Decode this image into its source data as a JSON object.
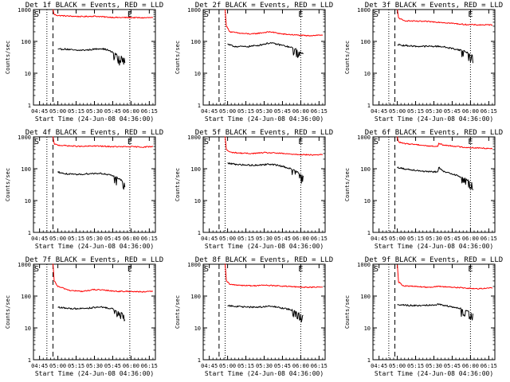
{
  "figure": {
    "x_tick_labels": [
      "04:45",
      "05:00",
      "05:15",
      "05:30",
      "05:45",
      "06:00",
      "06:15"
    ],
    "x_ticks_min": [
      285,
      300,
      315,
      330,
      345,
      360,
      375
    ],
    "xlim_min": [
      280,
      380
    ],
    "ylim": [
      1,
      1000
    ],
    "y_log": true,
    "y_tick_labels": [
      "1",
      "10",
      "100",
      "1000"
    ],
    "y_ticks": [
      1,
      10,
      100,
      1000
    ],
    "colors": {
      "events": "#000000",
      "lld": "#ff0000"
    },
    "start_marker": "S",
    "end_marker": "E"
  },
  "panels": [
    {
      "title": "Det 1f BLACK = Events, RED = LLD",
      "ylabel": "Counts/sec",
      "xlabel": "Start Time (24-Jun-08 04:36:00)",
      "dotted_lines_min": [
        291,
        359
      ],
      "dashed_line_min": [
        296
      ],
      "chart_data": {
        "type": "line",
        "y_scale": "log",
        "series": [
          {
            "color": "#ff0000",
            "x": [
              296,
              297,
              300,
              310,
              320,
              330,
              340,
              350,
              360,
              370,
              378
            ],
            "y": [
              1000,
              700,
              650,
              620,
              600,
              620,
              580,
              560,
              560,
              550,
              560
            ]
          },
          {
            "color": "#000000",
            "x": [
              300,
              305,
              315,
              325,
              335,
              340,
              345,
              350,
              355
            ],
            "y": [
              55,
              58,
              52,
              54,
              60,
              55,
              45,
              35,
              30
            ]
          }
        ]
      }
    },
    {
      "title": "Det 2f BLACK = Events, RED = LLD",
      "ylabel": "Counts/sec",
      "xlabel": "Start Time (24-Jun-08 04:36:00)",
      "dotted_lines_min": [
        298,
        360
      ],
      "dashed_line_min": [
        293
      ],
      "chart_data": {
        "type": "line",
        "y_scale": "log",
        "series": [
          {
            "color": "#ff0000",
            "x": [
              298,
              299,
              302,
              310,
              320,
              330,
              335,
              345,
              355,
              365,
              378
            ],
            "y": [
              1000,
              300,
              200,
              180,
              170,
              190,
              200,
              170,
              160,
              150,
              160
            ]
          },
          {
            "color": "#000000",
            "x": [
              300,
              305,
              315,
              325,
              335,
              345,
              355,
              362
            ],
            "y": [
              80,
              70,
              68,
              75,
              90,
              75,
              60,
              40
            ]
          }
        ]
      }
    },
    {
      "title": "Det 3f BLACK = Events, RED = LLD",
      "ylabel": "Counts/sec",
      "xlabel": "Start Time (24-Jun-08 04:36:00)",
      "dotted_lines_min": [
        293,
        360
      ],
      "dashed_line_min": [
        298
      ],
      "chart_data": {
        "type": "line",
        "y_scale": "log",
        "series": [
          {
            "color": "#ff0000",
            "x": [
              300,
              301,
              305,
              315,
              325,
              335,
              345,
              355,
              365,
              378
            ],
            "y": [
              1000,
              550,
              450,
              430,
              420,
              400,
              370,
              340,
              330,
              330
            ]
          },
          {
            "color": "#000000",
            "x": [
              300,
              305,
              315,
              325,
              335,
              345,
              355,
              362
            ],
            "y": [
              80,
              75,
              70,
              70,
              70,
              60,
              50,
              35
            ]
          }
        ]
      }
    },
    {
      "title": "Det 4f BLACK = Events, RED = LLD",
      "ylabel": "Counts/sec",
      "xlabel": "Start Time (24-Jun-08 04:36:00)",
      "dotted_lines_min": [
        291,
        359
      ],
      "dashed_line_min": [
        296
      ],
      "chart_data": {
        "type": "line",
        "y_scale": "log",
        "series": [
          {
            "color": "#ff0000",
            "x": [
              296,
              297,
              300,
              310,
              320,
              330,
              340,
              350,
              360,
              370,
              378
            ],
            "y": [
              1000,
              600,
              550,
              520,
              500,
              520,
              500,
              490,
              490,
              480,
              500
            ]
          },
          {
            "color": "#000000",
            "x": [
              300,
              305,
              315,
              325,
              335,
              345,
              350,
              355
            ],
            "y": [
              80,
              70,
              65,
              70,
              72,
              60,
              50,
              35
            ]
          }
        ]
      }
    },
    {
      "title": "Det 5f BLACK = Events, RED = LLD",
      "ylabel": "Counts/sec",
      "xlabel": "Start Time (24-Jun-08 04:36:00)",
      "dotted_lines_min": [
        298,
        360
      ],
      "dashed_line_min": [
        293
      ],
      "chart_data": {
        "type": "line",
        "y_scale": "log",
        "series": [
          {
            "color": "#ff0000",
            "x": [
              298,
              299,
              302,
              310,
              320,
              330,
              340,
              350,
              360,
              370,
              378
            ],
            "y": [
              1000,
              400,
              330,
              310,
              300,
              320,
              310,
              290,
              280,
              270,
              280
            ]
          },
          {
            "color": "#000000",
            "x": [
              300,
              305,
              315,
              325,
              335,
              345,
              355,
              362
            ],
            "y": [
              150,
              140,
              130,
              130,
              140,
              120,
              90,
              60
            ]
          }
        ]
      }
    },
    {
      "title": "Det 6f BLACK = Events, RED = LLD",
      "ylabel": "Counts/sec",
      "xlabel": "Start Time (24-Jun-08 04:36:00)",
      "dotted_lines_min": [
        293,
        360
      ],
      "dashed_line_min": [
        298
      ],
      "chart_data": {
        "type": "line",
        "y_scale": "log",
        "series": [
          {
            "color": "#ff0000",
            "x": [
              300,
              301,
              305,
              315,
              325,
              333,
              334,
              338,
              345,
              355,
              365,
              378
            ],
            "y": [
              1000,
              700,
              620,
              580,
              520,
              500,
              620,
              550,
              520,
              470,
              450,
              430
            ]
          },
          {
            "color": "#000000",
            "x": [
              300,
              305,
              315,
              325,
              333,
              334,
              338,
              345,
              355,
              362
            ],
            "y": [
              110,
              100,
              90,
              80,
              80,
              110,
              80,
              70,
              50,
              35
            ]
          }
        ]
      }
    },
    {
      "title": "Det 7f BLACK = Events, RED = LLD",
      "ylabel": "Counts/sec",
      "xlabel": "Start Time (24-Jun-08 04:36:00)",
      "dotted_lines_min": [
        291,
        359
      ],
      "dashed_line_min": [
        296
      ],
      "chart_data": {
        "type": "line",
        "y_scale": "log",
        "series": [
          {
            "color": "#ff0000",
            "x": [
              296,
              297,
              300,
              310,
              320,
              330,
              340,
              350,
              360,
              370,
              378
            ],
            "y": [
              1000,
              300,
              200,
              150,
              140,
              160,
              150,
              140,
              140,
              135,
              140
            ]
          },
          {
            "color": "#000000",
            "x": [
              300,
              305,
              315,
              325,
              335,
              345,
              350,
              355
            ],
            "y": [
              45,
              42,
              40,
              42,
              45,
              40,
              32,
              25
            ]
          }
        ]
      }
    },
    {
      "title": "Det 8f BLACK = Events, RED = LLD",
      "ylabel": "Counts/sec",
      "xlabel": "Start Time (24-Jun-08 04:36:00)",
      "dotted_lines_min": [
        298,
        360
      ],
      "dashed_line_min": [
        293
      ],
      "chart_data": {
        "type": "line",
        "y_scale": "log",
        "series": [
          {
            "color": "#ff0000",
            "x": [
              298,
              299,
              302,
              310,
              320,
              330,
              340,
              350,
              360,
              370,
              378
            ],
            "y": [
              1000,
              300,
              230,
              220,
              210,
              220,
              210,
              200,
              190,
              190,
              190
            ]
          },
          {
            "color": "#000000",
            "x": [
              300,
              305,
              315,
              325,
              335,
              345,
              355,
              362
            ],
            "y": [
              50,
              48,
              45,
              45,
              48,
              42,
              35,
              25
            ]
          }
        ]
      }
    },
    {
      "title": "Det 9f BLACK = Events, RED = LLD",
      "ylabel": "Counts/sec",
      "xlabel": "Start Time (24-Jun-08 04:36:00)",
      "dotted_lines_min": [
        293,
        360
      ],
      "dashed_line_min": [
        298
      ],
      "chart_data": {
        "type": "line",
        "y_scale": "log",
        "series": [
          {
            "color": "#ff0000",
            "x": [
              300,
              301,
              305,
              315,
              325,
              335,
              345,
              355,
              365,
              378
            ],
            "y": [
              1000,
              280,
              210,
              200,
              190,
              200,
              190,
              180,
              170,
              180
            ]
          },
          {
            "color": "#000000",
            "x": [
              300,
              305,
              315,
              325,
              335,
              345,
              355,
              362
            ],
            "y": [
              55,
              52,
              50,
              52,
              55,
              45,
              38,
              28
            ]
          }
        ]
      }
    }
  ]
}
